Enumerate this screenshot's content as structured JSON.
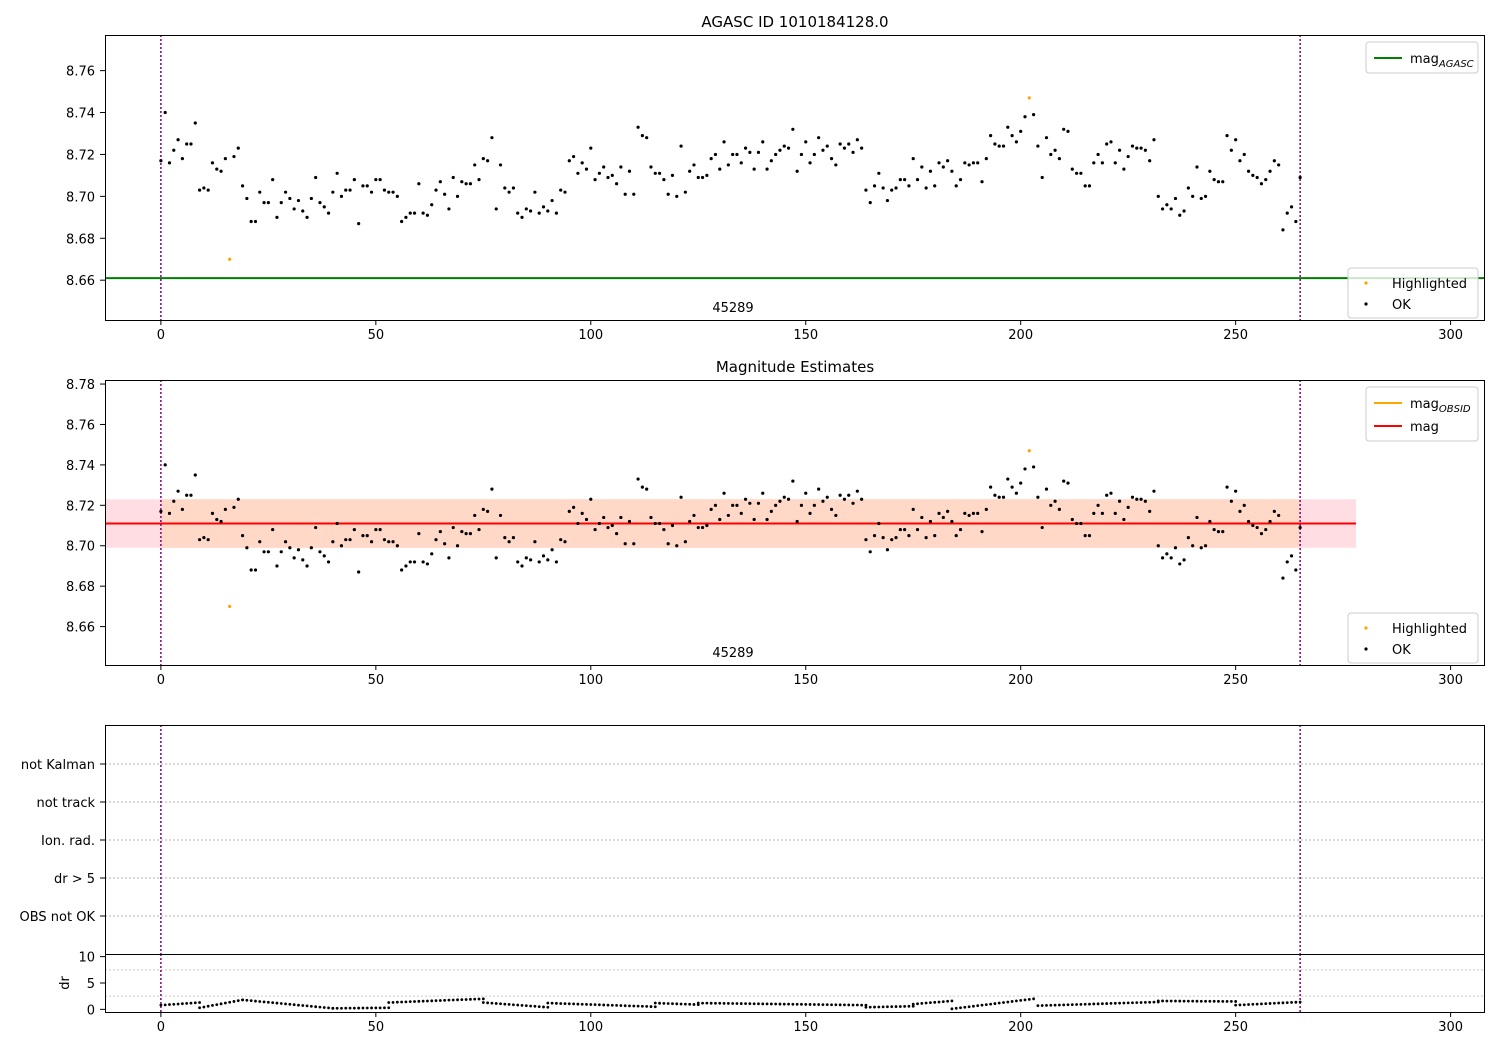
{
  "chart_data": [
    {
      "type": "scatter",
      "title": "AGASC ID 1010184128.0",
      "xlim": [
        -13,
        308
      ],
      "ylim": [
        8.641,
        8.777
      ],
      "xticks": [
        0,
        50,
        100,
        150,
        200,
        250,
        300
      ],
      "yticks": [
        8.66,
        8.68,
        8.7,
        8.72,
        8.74,
        8.76
      ],
      "ytick_labels": [
        "8.66",
        "8.68",
        "8.70",
        "8.72",
        "8.74",
        "8.76"
      ],
      "obsid_label": "45289",
      "obsid_label_x": 133,
      "obs_boundaries": [
        0,
        265
      ],
      "hline": {
        "name": "mag_AGASC",
        "value": 8.661,
        "x_range": [
          -13,
          308
        ],
        "color": "#008000"
      },
      "legend_lines": [
        {
          "base": "mag",
          "sub": "AGASC",
          "color": "#008000"
        }
      ],
      "legend_points": [
        {
          "label": "Highlighted",
          "color": "#ffa500"
        },
        {
          "label": "OK",
          "color": "#000000"
        }
      ],
      "highlighted": [
        [
          16,
          8.67
        ],
        [
          202,
          8.747
        ]
      ],
      "series": [
        {
          "name": "OK",
          "color": "#000000",
          "x": [
            0,
            1,
            2,
            3,
            4,
            5,
            6,
            7,
            8,
            9,
            10,
            11,
            12,
            13,
            14,
            15,
            17,
            18,
            19,
            20,
            21,
            22,
            23,
            24,
            25,
            26,
            27,
            28,
            29,
            30,
            31,
            32,
            33,
            34,
            35,
            36,
            37,
            38,
            39,
            40,
            41,
            42,
            43,
            44,
            45,
            46,
            47,
            48,
            49,
            50,
            51,
            52,
            53,
            54,
            55,
            56,
            57,
            58,
            59,
            60,
            61,
            62,
            63,
            64,
            65,
            66,
            67,
            68,
            69,
            70,
            71,
            72,
            73,
            74,
            75,
            76,
            77,
            78,
            79,
            80,
            81,
            82,
            83,
            84,
            85,
            86,
            87,
            88,
            89,
            90,
            91,
            92,
            93,
            94,
            95,
            96,
            97,
            98,
            99,
            100,
            101,
            102,
            103,
            104,
            105,
            106,
            107,
            108,
            109,
            110,
            111,
            112,
            113,
            114,
            115,
            116,
            117,
            118,
            119,
            120,
            121,
            122,
            123,
            124,
            125,
            126,
            127,
            128,
            129,
            130,
            131,
            132,
            133,
            134,
            135,
            136,
            137,
            138,
            139,
            140,
            141,
            142,
            143,
            144,
            145,
            146,
            147,
            148,
            149,
            150,
            151,
            152,
            153,
            154,
            155,
            156,
            157,
            158,
            159,
            160,
            161,
            162,
            163,
            164,
            165,
            166,
            167,
            168,
            169,
            170,
            171,
            172,
            173,
            174,
            175,
            176,
            177,
            178,
            179,
            180,
            181,
            182,
            183,
            184,
            185,
            186,
            187,
            188,
            189,
            190,
            191,
            192,
            193,
            194,
            195,
            196,
            197,
            198,
            199,
            200,
            201,
            203,
            204,
            205,
            206,
            207,
            208,
            209,
            210,
            211,
            212,
            213,
            214,
            215,
            216,
            217,
            218,
            219,
            220,
            221,
            222,
            223,
            224,
            225,
            226,
            227,
            228,
            229,
            230,
            231,
            232,
            233,
            234,
            235,
            236,
            237,
            238,
            239,
            240,
            241,
            242,
            243,
            244,
            245,
            246,
            247,
            248,
            249,
            250,
            251,
            252,
            253,
            254,
            255,
            256,
            257,
            258,
            259,
            260,
            261,
            262,
            263,
            264,
            265
          ],
          "y": [
            8.717,
            8.74,
            8.716,
            8.722,
            8.727,
            8.718,
            8.725,
            8.725,
            8.735,
            8.703,
            8.704,
            8.703,
            8.716,
            8.713,
            8.712,
            8.718,
            8.719,
            8.723,
            8.705,
            8.699,
            8.688,
            8.688,
            8.702,
            8.697,
            8.697,
            8.708,
            8.69,
            8.697,
            8.702,
            8.699,
            8.694,
            8.698,
            8.693,
            8.69,
            8.699,
            8.709,
            8.697,
            8.695,
            8.692,
            8.702,
            8.711,
            8.7,
            8.703,
            8.703,
            8.708,
            8.687,
            8.705,
            8.705,
            8.702,
            8.708,
            8.708,
            8.703,
            8.702,
            8.702,
            8.7,
            8.688,
            8.69,
            8.692,
            8.692,
            8.706,
            8.692,
            8.691,
            8.696,
            8.703,
            8.707,
            8.701,
            8.694,
            8.709,
            8.7,
            8.707,
            8.706,
            8.706,
            8.715,
            8.708,
            8.718,
            8.717,
            8.728,
            8.694,
            8.715,
            8.704,
            8.702,
            8.704,
            8.692,
            8.69,
            8.694,
            8.693,
            8.702,
            8.692,
            8.695,
            8.693,
            8.698,
            8.692,
            8.703,
            8.702,
            8.717,
            8.719,
            8.711,
            8.716,
            8.713,
            8.723,
            8.708,
            8.711,
            8.714,
            8.709,
            8.71,
            8.706,
            8.714,
            8.701,
            8.712,
            8.701,
            8.733,
            8.729,
            8.728,
            8.714,
            8.711,
            8.711,
            8.708,
            8.701,
            8.71,
            8.7,
            8.724,
            8.702,
            8.712,
            8.715,
            8.709,
            8.709,
            8.71,
            8.718,
            8.72,
            8.713,
            8.726,
            8.715,
            8.72,
            8.72,
            8.716,
            8.723,
            8.721,
            8.713,
            8.721,
            8.726,
            8.713,
            8.717,
            8.72,
            8.722,
            8.724,
            8.723,
            8.732,
            8.712,
            8.72,
            8.726,
            8.716,
            8.72,
            8.728,
            8.722,
            8.724,
            8.718,
            8.715,
            8.725,
            8.723,
            8.725,
            8.721,
            8.727,
            8.723,
            8.703,
            8.697,
            8.705,
            8.711,
            8.704,
            8.698,
            8.703,
            8.704,
            8.708,
            8.708,
            8.705,
            8.718,
            8.708,
            8.714,
            8.704,
            8.712,
            8.705,
            8.716,
            8.714,
            8.717,
            8.712,
            8.705,
            8.708,
            8.716,
            8.715,
            8.716,
            8.716,
            8.707,
            8.718,
            8.729,
            8.725,
            8.724,
            8.724,
            8.733,
            8.729,
            8.726,
            8.731,
            8.738,
            8.739,
            8.724,
            8.709,
            8.728,
            8.72,
            8.722,
            8.718,
            8.732,
            8.731,
            8.713,
            8.711,
            8.711,
            8.705,
            8.705,
            8.716,
            8.72,
            8.716,
            8.725,
            8.726,
            8.716,
            8.722,
            8.713,
            8.719,
            8.724,
            8.723,
            8.723,
            8.722,
            8.717,
            8.727,
            8.7,
            8.694,
            8.696,
            8.694,
            8.699,
            8.691,
            8.693,
            8.704,
            8.7,
            8.714,
            8.699,
            8.7,
            8.712,
            8.708,
            8.707,
            8.707,
            8.729,
            8.722,
            8.727,
            8.717,
            8.72,
            8.712,
            8.71,
            8.709,
            8.706,
            8.708,
            8.712,
            8.717,
            8.715,
            8.684,
            8.692,
            8.695,
            8.688,
            8.709
          ]
        }
      ]
    },
    {
      "type": "scatter",
      "title": "Magnitude Estimates",
      "xlim": [
        -13,
        308
      ],
      "ylim": [
        8.641,
        8.782
      ],
      "xticks": [
        0,
        50,
        100,
        150,
        200,
        250,
        300
      ],
      "yticks": [
        8.66,
        8.68,
        8.7,
        8.72,
        8.74,
        8.76,
        8.78
      ],
      "ytick_labels": [
        "8.66",
        "8.68",
        "8.70",
        "8.72",
        "8.74",
        "8.76",
        "8.78"
      ],
      "obsid_label": "45289",
      "obsid_label_x": 133,
      "obs_boundaries": [
        0,
        265
      ],
      "hline": {
        "name": "mag",
        "value": 8.711,
        "x_range": [
          -13,
          278
        ],
        "color": "#ff0000"
      },
      "band_outer": {
        "range": [
          8.699,
          8.723
        ],
        "x_range": [
          -13,
          278
        ],
        "color": "#ffdde3"
      },
      "band_inner": {
        "range": [
          8.699,
          8.723
        ],
        "x_range": [
          0,
          265
        ],
        "color": "#ffd8c8"
      },
      "obsid_line": {
        "name": "mag_OBSID",
        "value": 8.711,
        "x_range": [
          0,
          265
        ],
        "color": "#ffa500"
      },
      "legend_lines": [
        {
          "base": "mag",
          "sub": "OBSID",
          "color": "#ffa500"
        },
        {
          "base": "mag",
          "sub": "",
          "color": "#ff0000"
        }
      ],
      "legend_points": [
        {
          "label": "Highlighted",
          "color": "#ffa500"
        },
        {
          "label": "OK",
          "color": "#000000"
        }
      ],
      "highlighted": [
        [
          16,
          8.67
        ],
        [
          202,
          8.747
        ]
      ],
      "series_ref": 0
    },
    {
      "type": "table",
      "flag_rows": [
        "not Kalman",
        "not track",
        "Ion. rad.",
        "dr > 5",
        "OBS not OK"
      ],
      "xlim": [
        -13,
        308
      ],
      "obs_boundaries": [
        0,
        265
      ]
    },
    {
      "type": "scatter",
      "ylabel": "dr",
      "xlim": [
        -13,
        308
      ],
      "ylim": [
        -0.5,
        10.5
      ],
      "xticks": [
        0,
        50,
        100,
        150,
        200,
        250,
        300
      ],
      "yticks": [
        0,
        5,
        10
      ],
      "ytick_labels": [
        "0",
        "5",
        "10"
      ],
      "obs_boundaries": [
        0,
        265
      ],
      "dr_segments": [
        {
          "x": [
            0,
            9
          ],
          "y": [
            0.8,
            1.3
          ],
          "x2": [
            9,
            19
          ],
          "y2": [
            0.3,
            1.8
          ]
        },
        {
          "x": [
            19,
            40
          ],
          "y": [
            1.8,
            0.2
          ]
        },
        {
          "x": [
            40,
            53
          ],
          "y": [
            0.2,
            0.3
          ]
        },
        {
          "x": [
            53,
            75
          ],
          "y": [
            1.3,
            2.0
          ]
        },
        {
          "x": [
            75,
            90
          ],
          "y": [
            1.3,
            0.4
          ]
        },
        {
          "x": [
            90,
            115
          ],
          "y": [
            1.2,
            0.5
          ]
        },
        {
          "x": [
            115,
            125
          ],
          "y": [
            1.2,
            0.9
          ]
        },
        {
          "x": [
            125,
            164
          ],
          "y": [
            1.2,
            0.8
          ]
        },
        {
          "x": [
            164,
            175
          ],
          "y": [
            0.4,
            0.6
          ]
        },
        {
          "x": [
            175,
            184
          ],
          "y": [
            1.0,
            1.6
          ]
        },
        {
          "x": [
            184,
            203
          ],
          "y": [
            0.1,
            2.0
          ]
        },
        {
          "x": [
            204,
            232
          ],
          "y": [
            0.7,
            1.4
          ]
        },
        {
          "x": [
            232,
            250
          ],
          "y": [
            1.6,
            1.5
          ]
        },
        {
          "x": [
            250,
            265
          ],
          "y": [
            0.8,
            1.4
          ]
        }
      ]
    }
  ]
}
